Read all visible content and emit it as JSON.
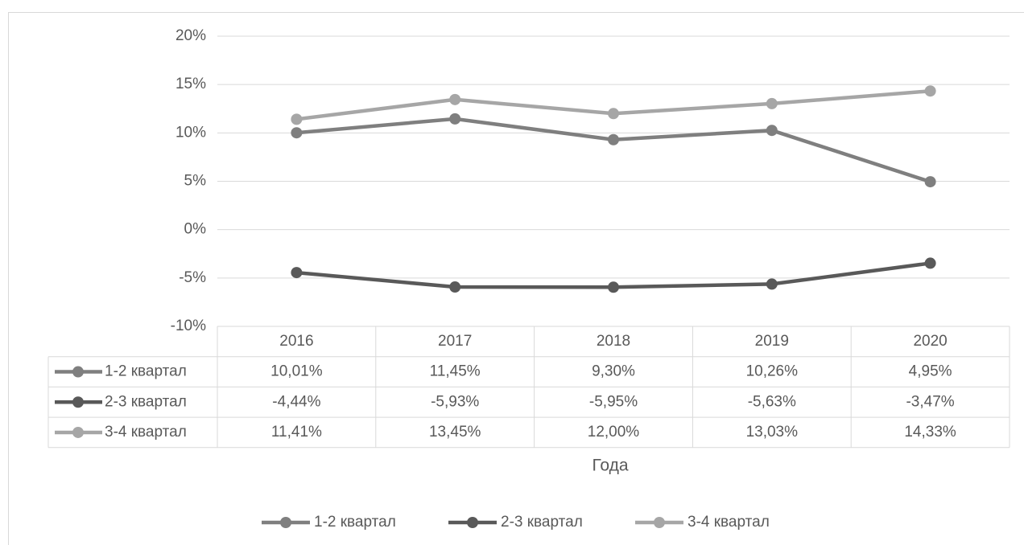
{
  "chart_data": {
    "type": "line",
    "x_label": "Года",
    "categories": [
      "2016",
      "2017",
      "2018",
      "2019",
      "2020"
    ],
    "series": [
      {
        "name": "1-2 квартал",
        "color": "#7f7f7f",
        "values": [
          10.01,
          11.45,
          9.3,
          10.26,
          4.95
        ],
        "value_labels": [
          "10,01%",
          "11,45%",
          "9,30%",
          "10,26%",
          "4,95%"
        ]
      },
      {
        "name": "2-3 квартал",
        "color": "#595959",
        "values": [
          -4.44,
          -5.93,
          -5.95,
          -5.63,
          -3.47
        ],
        "value_labels": [
          "-4,44%",
          "-5,93%",
          "-5,95%",
          "-5,63%",
          "-3,47%"
        ]
      },
      {
        "name": "3-4 квартал",
        "color": "#a6a6a6",
        "values": [
          11.41,
          13.45,
          12.0,
          13.03,
          14.33
        ],
        "value_labels": [
          "11,41%",
          "13,45%",
          "12,00%",
          "13,03%",
          "14,33%"
        ]
      }
    ],
    "ylim": [
      -10,
      20
    ],
    "yticks": [
      {
        "value": -10,
        "label": "-10%"
      },
      {
        "value": -5,
        "label": "-5%"
      },
      {
        "value": 0,
        "label": "0%"
      },
      {
        "value": 5,
        "label": "5%"
      },
      {
        "value": 10,
        "label": "10%"
      },
      {
        "value": 15,
        "label": "15%"
      },
      {
        "value": 20,
        "label": "20%"
      }
    ],
    "grid": true,
    "legend": "bottom"
  }
}
